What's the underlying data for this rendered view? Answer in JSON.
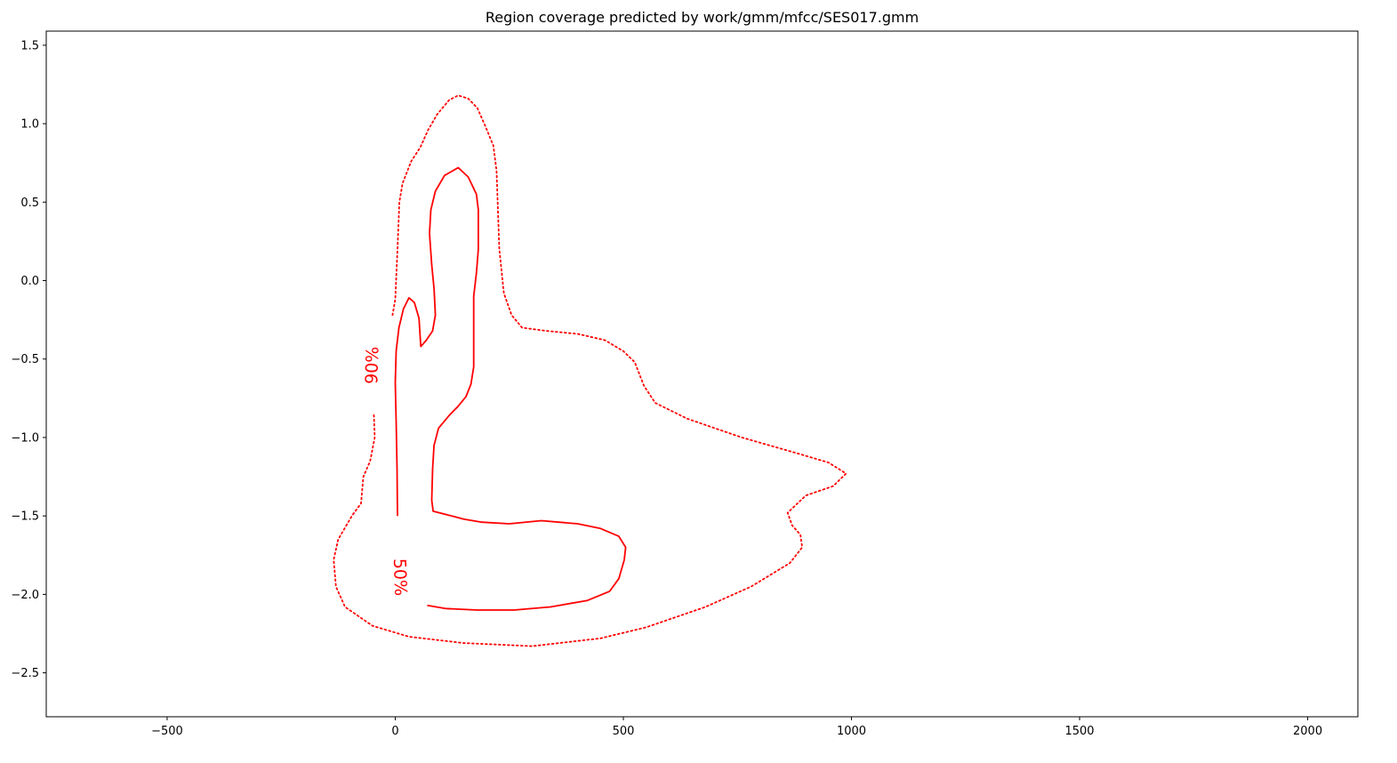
{
  "chart_data": {
    "type": "line",
    "title": "Region coverage predicted by work/gmm/mfcc/SES017.gmm",
    "xlabel": "",
    "ylabel": "",
    "xlim": [
      -765,
      2110
    ],
    "ylim": [
      -2.78,
      1.59
    ],
    "grid": false,
    "line_color": "#ff0000",
    "x_ticks": [
      {
        "value": -500,
        "label": "−500"
      },
      {
        "value": 0,
        "label": "0"
      },
      {
        "value": 500,
        "label": "500"
      },
      {
        "value": 1000,
        "label": "1000"
      },
      {
        "value": 1500,
        "label": "1500"
      },
      {
        "value": 2000,
        "label": "2000"
      }
    ],
    "y_ticks": [
      {
        "value": 1.5,
        "label": "1.5"
      },
      {
        "value": 1.0,
        "label": "1.0"
      },
      {
        "value": 0.5,
        "label": "0.5"
      },
      {
        "value": 0.0,
        "label": "0.0"
      },
      {
        "value": -0.5,
        "label": "−0.5"
      },
      {
        "value": -1.0,
        "label": "−1.0"
      },
      {
        "value": -1.5,
        "label": "−1.5"
      },
      {
        "value": -2.0,
        "label": "−2.0"
      },
      {
        "value": -2.5,
        "label": "−2.5"
      }
    ],
    "series": [
      {
        "label": "90%",
        "style": "dotted",
        "label_at": {
          "x": -50,
          "y": -0.54
        },
        "segments": [
          [
            [
              -6,
              -0.22
            ],
            [
              0,
              -0.12
            ],
            [
              5,
              0.2
            ],
            [
              9,
              0.5
            ],
            [
              16,
              0.62
            ],
            [
              35,
              0.76
            ],
            [
              55,
              0.85
            ],
            [
              72,
              0.96
            ],
            [
              92,
              1.06
            ],
            [
              118,
              1.15
            ],
            [
              138,
              1.18
            ],
            [
              160,
              1.16
            ],
            [
              180,
              1.1
            ],
            [
              198,
              0.98
            ],
            [
              215,
              0.86
            ],
            [
              222,
              0.7
            ],
            [
              228,
              0.2
            ],
            [
              238,
              -0.08
            ],
            [
              255,
              -0.22
            ],
            [
              278,
              -0.3
            ],
            [
              330,
              -0.32
            ],
            [
              400,
              -0.34
            ],
            [
              460,
              -0.38
            ],
            [
              500,
              -0.45
            ],
            [
              525,
              -0.52
            ],
            [
              545,
              -0.67
            ],
            [
              570,
              -0.78
            ],
            [
              640,
              -0.88
            ],
            [
              760,
              -1.0
            ],
            [
              880,
              -1.1
            ],
            [
              950,
              -1.16
            ],
            [
              988,
              -1.23
            ],
            [
              960,
              -1.31
            ],
            [
              900,
              -1.37
            ],
            [
              860,
              -1.48
            ],
            [
              870,
              -1.56
            ],
            [
              888,
              -1.62
            ],
            [
              892,
              -1.7
            ],
            [
              865,
              -1.8
            ],
            [
              780,
              -1.95
            ],
            [
              680,
              -2.08
            ],
            [
              550,
              -2.21
            ],
            [
              450,
              -2.28
            ],
            [
              300,
              -2.33
            ],
            [
              150,
              -2.31
            ],
            [
              30,
              -2.27
            ],
            [
              -50,
              -2.2
            ],
            [
              -110,
              -2.08
            ],
            [
              -130,
              -1.95
            ],
            [
              -135,
              -1.78
            ],
            [
              -125,
              -1.65
            ],
            [
              -95,
              -1.5
            ],
            [
              -75,
              -1.42
            ],
            [
              -70,
              -1.25
            ],
            [
              -55,
              -1.15
            ],
            [
              -45,
              -1.0
            ],
            [
              -47,
              -0.85
            ]
          ]
        ]
      },
      {
        "label": "50%",
        "style": "solid",
        "label_at": {
          "x": 10,
          "y": -1.89
        },
        "segments": [
          [
            [
              5,
              -1.5
            ],
            [
              4,
              -1.2
            ],
            [
              2,
              -0.9
            ],
            [
              0,
              -0.65
            ],
            [
              2,
              -0.45
            ],
            [
              8,
              -0.3
            ],
            [
              18,
              -0.18
            ],
            [
              30,
              -0.11
            ],
            [
              42,
              -0.14
            ],
            [
              52,
              -0.24
            ],
            [
              56,
              -0.42
            ],
            [
              68,
              -0.38
            ],
            [
              82,
              -0.32
            ],
            [
              88,
              -0.22
            ],
            [
              85,
              -0.05
            ],
            [
              80,
              0.1
            ],
            [
              75,
              0.3
            ],
            [
              78,
              0.45
            ],
            [
              88,
              0.57
            ],
            [
              108,
              0.67
            ],
            [
              138,
              0.72
            ],
            [
              160,
              0.66
            ],
            [
              178,
              0.55
            ],
            [
              182,
              0.45
            ],
            [
              182,
              0.2
            ],
            [
              178,
              0.05
            ],
            [
              172,
              -0.1
            ],
            [
              172,
              -0.35
            ],
            [
              172,
              -0.55
            ],
            [
              166,
              -0.66
            ],
            [
              155,
              -0.74
            ],
            [
              138,
              -0.8
            ],
            [
              118,
              -0.86
            ],
            [
              95,
              -0.94
            ],
            [
              85,
              -1.05
            ],
            [
              82,
              -1.2
            ],
            [
              80,
              -1.4
            ],
            [
              83,
              -1.47
            ],
            [
              110,
              -1.49
            ],
            [
              150,
              -1.52
            ],
            [
              190,
              -1.54
            ],
            [
              250,
              -1.55
            ],
            [
              320,
              -1.53
            ],
            [
              400,
              -1.55
            ],
            [
              450,
              -1.58
            ],
            [
              490,
              -1.63
            ],
            [
              505,
              -1.7
            ],
            [
              502,
              -1.78
            ],
            [
              490,
              -1.9
            ],
            [
              470,
              -1.98
            ],
            [
              420,
              -2.04
            ],
            [
              340,
              -2.08
            ],
            [
              260,
              -2.1
            ],
            [
              180,
              -2.1
            ],
            [
              110,
              -2.09
            ],
            [
              70,
              -2.07
            ]
          ]
        ]
      }
    ]
  }
}
